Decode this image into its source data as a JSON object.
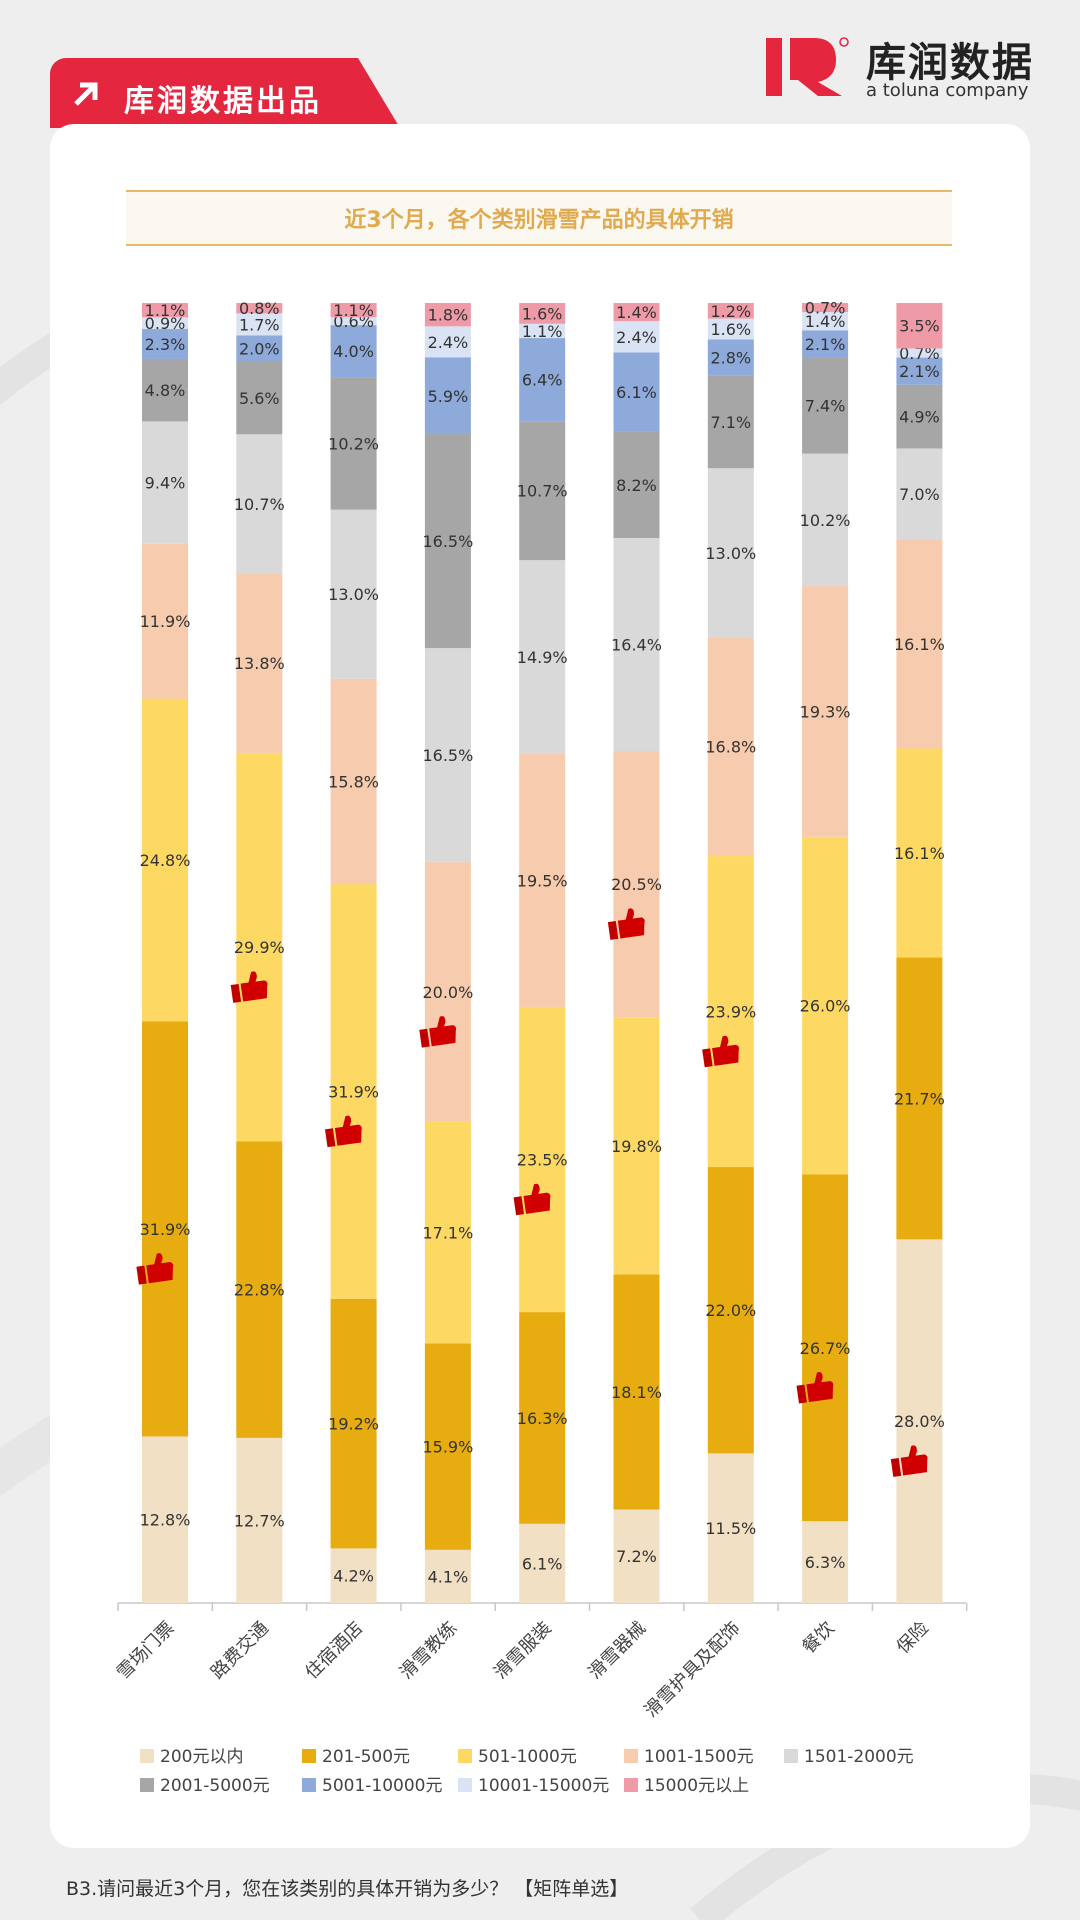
{
  "header": {
    "tag_label": "库润数据出品",
    "logo_name": "库润数据",
    "logo_sub": "a toluna company"
  },
  "footnote": "B3.请问最近3个月，您在该类别的具体开销为多少？  【矩阵单选】",
  "chart_data": {
    "type": "bar",
    "stacked": true,
    "percent": true,
    "title": "近3个月，各个类别滑雪产品的具体开销",
    "categories": [
      "雪场门票",
      "路费交通",
      "住宿酒店",
      "滑雪教练",
      "滑雪服装",
      "滑雪器械",
      "滑雪护具及配饰",
      "餐饮",
      "保险"
    ],
    "ylim": [
      0,
      100
    ],
    "grid": false,
    "legend_position": "bottom",
    "series": [
      {
        "name": "200元以内",
        "color": "#f2e0c4",
        "values": [
          12.8,
          12.7,
          4.2,
          4.1,
          6.1,
          7.2,
          11.5,
          6.3,
          28.0
        ]
      },
      {
        "name": "201-500元",
        "color": "#e6ac10",
        "values": [
          31.9,
          22.8,
          19.2,
          15.9,
          16.3,
          18.1,
          22.0,
          26.7,
          21.7
        ]
      },
      {
        "name": "501-1000元",
        "color": "#fdd863",
        "values": [
          24.8,
          29.9,
          31.9,
          17.1,
          23.5,
          19.8,
          23.9,
          26.0,
          16.1
        ]
      },
      {
        "name": "1001-1500元",
        "color": "#f7cbad",
        "values": [
          11.9,
          13.8,
          15.8,
          20.0,
          19.5,
          20.5,
          16.8,
          19.3,
          16.1
        ]
      },
      {
        "name": "1501-2000元",
        "color": "#d9d9d9",
        "values": [
          9.4,
          10.7,
          13.0,
          16.5,
          14.9,
          16.4,
          13.0,
          10.2,
          7.0
        ]
      },
      {
        "name": "2001-5000元",
        "color": "#a6a6a6",
        "values": [
          4.8,
          5.6,
          10.2,
          16.5,
          10.7,
          8.2,
          7.1,
          7.4,
          4.9
        ]
      },
      {
        "name": "5001-10000元",
        "color": "#8eaadb",
        "values": [
          2.3,
          2.0,
          4.0,
          5.9,
          6.4,
          6.1,
          2.8,
          2.1,
          2.1
        ]
      },
      {
        "name": "10001-15000元",
        "color": "#dae3f3",
        "values": [
          0.9,
          1.7,
          0.6,
          2.4,
          1.1,
          2.4,
          1.6,
          1.4,
          0.7
        ]
      },
      {
        "name": "15000元以上",
        "color": "#ef9ba7",
        "values": [
          1.1,
          0.8,
          1.1,
          1.8,
          1.6,
          1.4,
          1.2,
          0.7,
          3.5
        ]
      }
    ],
    "highlight_series_index": [
      1,
      2,
      2,
      3,
      2,
      3,
      2,
      1,
      0
    ],
    "highlight_icon": "thumbs-up-icon"
  }
}
